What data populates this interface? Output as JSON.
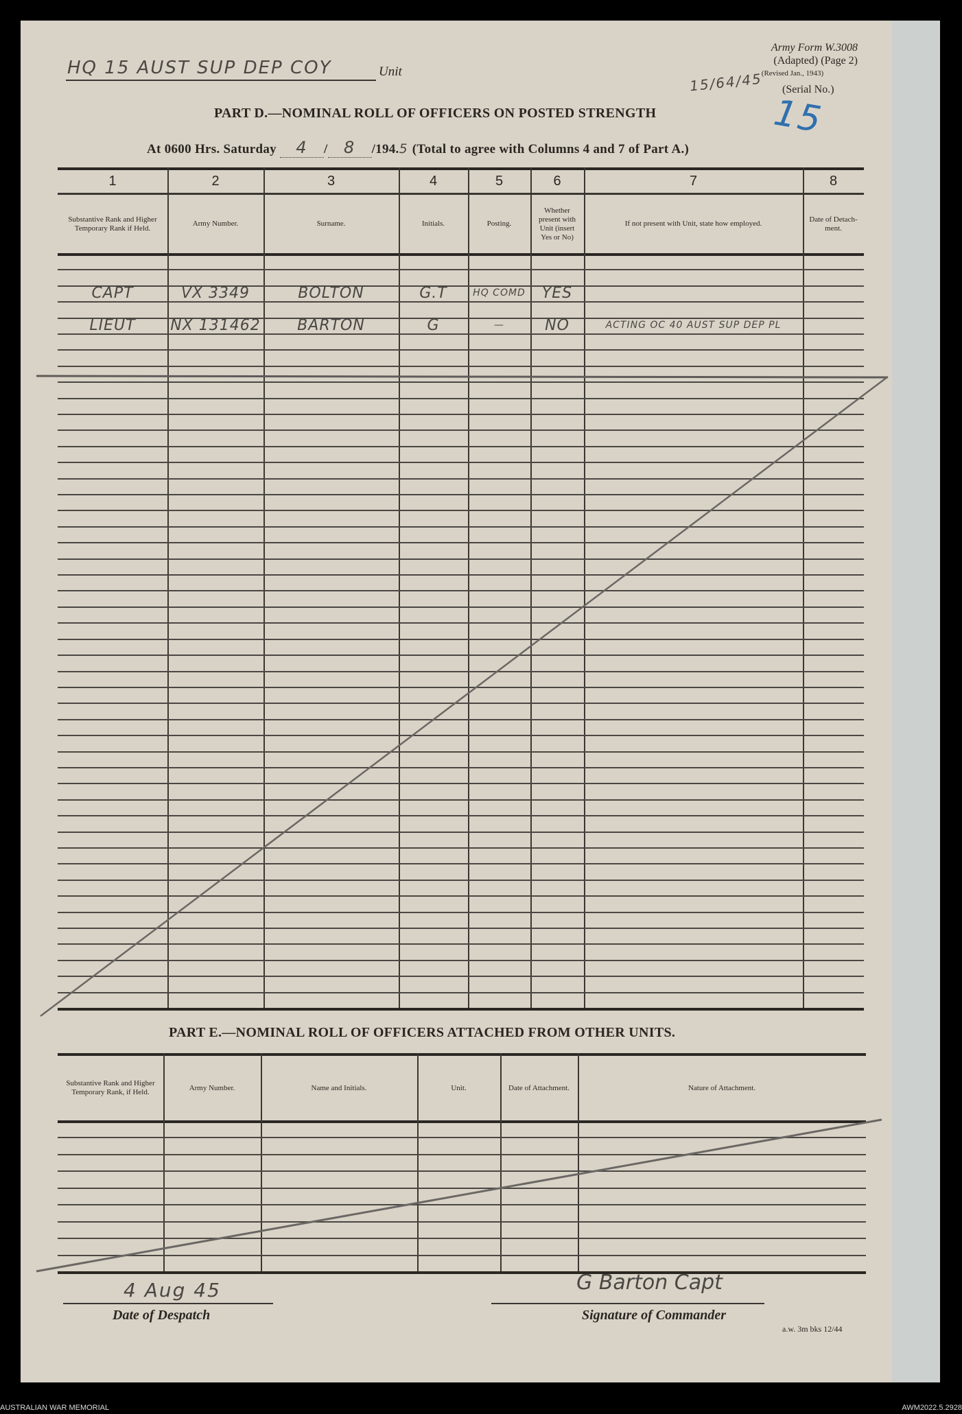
{
  "header": {
    "unit_value": "HQ 15 AUST SUP DEP COY",
    "unit_label": "Unit",
    "form_line1": "Army Form W.3008",
    "form_line2": "(Adapted) (Page 2)",
    "form_line3": "(Revised Jan., 1943)",
    "serial_value": "15/64/45",
    "serial_label": "(Serial No.)",
    "blue_annotation": "15"
  },
  "part_d": {
    "title": "PART D.—NOMINAL ROLL OF OFFICERS ON POSTED STRENGTH",
    "at_prefix": "At 0600 Hrs. Saturday",
    "day": "4",
    "month": "8",
    "year_prefix": "/194.",
    "year_digit": "5",
    "at_suffix": "(Total to agree with Columns 4 and 7 of Part A.)",
    "column_numbers": [
      "1",
      "2",
      "3",
      "4",
      "5",
      "6",
      "7",
      "8"
    ],
    "column_headers": [
      "Substantive Rank and Higher Temporary Rank if Held.",
      "Army Number.",
      "Surname.",
      "Initials.",
      "Posting.",
      "Whether present with Unit (insert Yes or No)",
      "If not present with Unit, state how employed.",
      "Date of Detach-ment."
    ],
    "entries": [
      [
        "CAPT",
        "VX 3349",
        "BOLTON",
        "G.T",
        "HQ COMD",
        "YES",
        "",
        ""
      ],
      [
        "LIEUT",
        "NX 131462",
        "BARTON",
        "G",
        "—",
        "NO",
        "ACTING OC 40 AUST SUP DEP PL",
        ""
      ]
    ]
  },
  "part_e": {
    "title": "PART E.—NOMINAL ROLL OF OFFICERS ATTACHED FROM OTHER UNITS.",
    "column_headers": [
      "Substantive Rank and Higher Temporary Rank, if Held.",
      "Army Number.",
      "Name and Initials.",
      "Unit.",
      "Date of Attachment.",
      "Nature of Attachment."
    ]
  },
  "signoff": {
    "despatch_value": "4 Aug 45",
    "despatch_label": "Date of Despatch",
    "signature_value": "G Barton Capt",
    "signature_label": "Signature of Commander",
    "print_code": "a.w. 3m bks 12/44"
  },
  "footer": {
    "left": "AUSTRALIAN WAR MEMORIAL",
    "right": "AWM2022.5.2928"
  }
}
